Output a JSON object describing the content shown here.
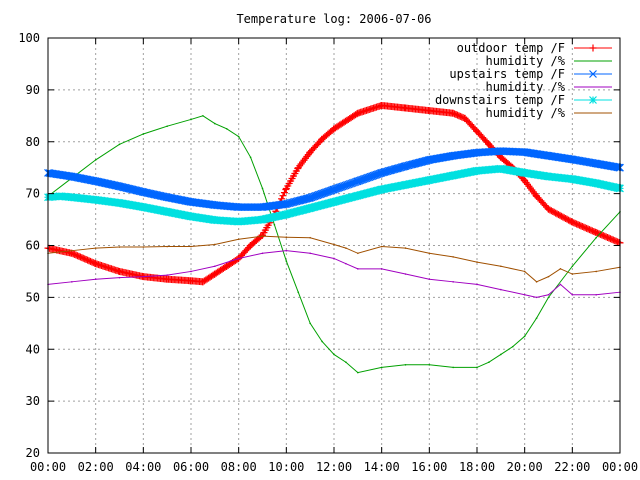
{
  "chart_data": {
    "type": "line",
    "title": "Temperature log: 2006-07-06",
    "xlabel": "",
    "ylabel": "",
    "xlim": [
      0,
      24
    ],
    "ylim": [
      20,
      100
    ],
    "grid": true,
    "legend_position": "top-right",
    "x_tick_values": [
      0,
      2,
      4,
      6,
      8,
      10,
      12,
      14,
      16,
      18,
      20,
      22,
      24
    ],
    "x_tick_labels": [
      "00:00",
      "02:00",
      "04:00",
      "06:00",
      "08:00",
      "10:00",
      "12:00",
      "14:00",
      "16:00",
      "18:00",
      "20:00",
      "22:00",
      "00:00"
    ],
    "y_tick_values": [
      20,
      30,
      40,
      50,
      60,
      70,
      80,
      90,
      100
    ],
    "y_tick_labels": [
      "20",
      "30",
      "40",
      "50",
      "60",
      "70",
      "80",
      "90",
      "100"
    ],
    "series": [
      {
        "name": "outdoor temp /F",
        "color": "#ff0000",
        "marker": "plus",
        "x": [
          0,
          1,
          2,
          3,
          4,
          5,
          6,
          6.5,
          7,
          7.5,
          8,
          8.5,
          9,
          9.5,
          10,
          10.5,
          11,
          11.5,
          12,
          13,
          14,
          15,
          16,
          17,
          17.5,
          18,
          18.5,
          19,
          19.5,
          20,
          20.5,
          21,
          22,
          23,
          24
        ],
        "y": [
          59.5,
          58.5,
          56.5,
          55,
          54,
          53.5,
          53.2,
          53,
          54.5,
          56,
          57.5,
          60,
          62,
          66,
          71,
          75,
          78,
          80.5,
          82.5,
          85.5,
          87,
          86.5,
          86,
          85.5,
          84.5,
          82,
          79.5,
          77,
          75,
          72.5,
          69.5,
          67,
          64.5,
          62.5,
          60.5
        ]
      },
      {
        "name": "humidity /%",
        "color": "#00a000",
        "marker": "none",
        "x": [
          0,
          1,
          2,
          3,
          4,
          5,
          6,
          6.5,
          7,
          7.5,
          8,
          8.5,
          9,
          9.5,
          10,
          10.5,
          11,
          11.5,
          12,
          12.5,
          13,
          14,
          15,
          16,
          17,
          18,
          18.5,
          19,
          19.5,
          20,
          20.5,
          21,
          22,
          23,
          24
        ],
        "y": [
          69.5,
          73,
          76.5,
          79.5,
          81.5,
          83,
          84.3,
          85,
          83.5,
          82.5,
          81,
          77,
          71,
          64,
          57,
          51,
          45,
          41.5,
          39,
          37.5,
          35.5,
          36.5,
          37,
          37,
          36.5,
          36.5,
          37.5,
          39,
          40.5,
          42.5,
          46,
          50,
          56,
          61.5,
          66.5
        ]
      },
      {
        "name": "upstairs temp /F",
        "color": "#0066ff",
        "marker": "cross",
        "x": [
          0,
          1,
          2,
          3,
          4,
          5,
          6,
          7,
          8,
          9,
          10,
          11,
          12,
          13,
          14,
          15,
          16,
          17,
          18,
          19,
          20,
          21,
          22,
          23,
          24
        ],
        "y": [
          74,
          73.3,
          72.4,
          71.4,
          70.3,
          69.3,
          68.4,
          67.8,
          67.4,
          67.4,
          68,
          69.2,
          70.8,
          72.4,
          74,
          75.3,
          76.5,
          77.3,
          77.9,
          78.2,
          78,
          77.3,
          76.6,
          75.8,
          75
        ]
      },
      {
        "name": "humidity /%",
        "color": "#a000c0",
        "marker": "none",
        "x": [
          0,
          1,
          2,
          3,
          4,
          5,
          6,
          7,
          8,
          9,
          10,
          11,
          12,
          12.5,
          13,
          14,
          15,
          16,
          17,
          18,
          19,
          20,
          20.5,
          21,
          21.5,
          22,
          23,
          24
        ],
        "y": [
          52.5,
          53,
          53.5,
          53.8,
          54,
          54.3,
          55,
          56,
          57.5,
          58.5,
          59,
          58.5,
          57.5,
          56.5,
          55.5,
          55.5,
          54.5,
          53.5,
          53,
          52.5,
          51.5,
          50.5,
          50,
          50.5,
          52.5,
          50.5,
          50.5,
          51
        ]
      },
      {
        "name": "downstairs temp /F",
        "color": "#00e0e0",
        "marker": "star",
        "x": [
          0,
          0.5,
          1,
          2,
          3,
          4,
          5,
          6,
          7,
          8,
          9,
          10,
          11,
          12,
          13,
          14,
          15,
          16,
          17,
          18,
          19,
          20,
          21,
          22,
          23,
          24
        ],
        "y": [
          69.3,
          69.5,
          69.3,
          68.8,
          68.2,
          67.4,
          66.5,
          65.6,
          64.9,
          64.6,
          65,
          66,
          67.2,
          68.4,
          69.6,
          70.8,
          71.7,
          72.6,
          73.5,
          74.4,
          74.8,
          74,
          73.3,
          72.8,
          72,
          71
        ]
      },
      {
        "name": "humidity /%",
        "color": "#a05000",
        "marker": "none",
        "x": [
          0,
          1,
          2,
          3,
          4,
          5,
          6,
          7,
          8,
          9,
          10,
          11,
          12,
          12.5,
          13,
          14,
          15,
          16,
          17,
          18,
          19,
          20,
          20.5,
          21,
          21.5,
          22,
          23,
          24
        ],
        "y": [
          58.5,
          59,
          59.5,
          59.7,
          59.7,
          59.8,
          59.8,
          60.2,
          61.2,
          61.8,
          61.6,
          61.5,
          60.2,
          59.5,
          58.5,
          59.8,
          59.5,
          58.5,
          57.8,
          56.8,
          56,
          55,
          53,
          54,
          55.5,
          54.5,
          55,
          55.8
        ]
      }
    ]
  }
}
